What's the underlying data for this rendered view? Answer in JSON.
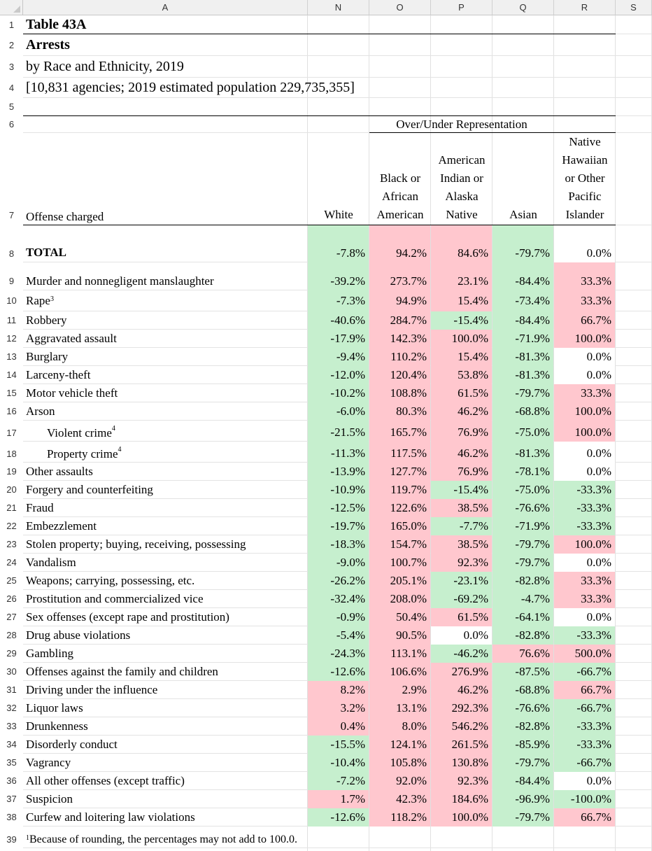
{
  "sheet": {
    "columns": [
      "A",
      "N",
      "O",
      "P",
      "Q",
      "R",
      "S"
    ],
    "rows": [
      "1",
      "2",
      "3",
      "4",
      "5",
      "6",
      "7",
      "8",
      "9",
      "10",
      "11",
      "12",
      "13",
      "14",
      "15",
      "16",
      "17",
      "18",
      "19",
      "20",
      "21",
      "22",
      "23",
      "24",
      "25",
      "26",
      "27",
      "28",
      "29",
      "30",
      "31",
      "32",
      "33",
      "34",
      "35",
      "36",
      "37",
      "38",
      "39"
    ]
  },
  "header": {
    "title": "Table 43A",
    "subtitle": "Arrests",
    "by_line": "by Race and Ethnicity, 2019",
    "agencies": "[10,831 agencies; 2019 estimated population 229,735,355]",
    "group_label": "Over/Under Representation",
    "col_offense": "Offense charged",
    "col_white": "White",
    "col_black": [
      "Black or",
      "African",
      "American"
    ],
    "col_aian": [
      "American",
      "Indian or",
      "Alaska",
      "Native"
    ],
    "col_asian": "Asian",
    "col_nhpi": [
      "Native",
      "Hawaiian",
      "or Other",
      "Pacific",
      "Islander"
    ]
  },
  "colors": {
    "positive": "#ffc7ce",
    "negative": "#c6efce"
  },
  "rows": [
    {
      "label": "TOTAL",
      "sup": "",
      "bold": true,
      "indent": false,
      "v": [
        "-7.8%",
        "94.2%",
        "84.6%",
        "-79.7%",
        "0.0%"
      ],
      "c": [
        "g",
        "r",
        "r",
        "g",
        "w"
      ]
    },
    {
      "label": "Murder and nonnegligent manslaughter",
      "sup": "",
      "bold": false,
      "indent": false,
      "v": [
        "-39.2%",
        "273.7%",
        "23.1%",
        "-84.4%",
        "33.3%"
      ],
      "c": [
        "g",
        "r",
        "r",
        "g",
        "r"
      ]
    },
    {
      "label": "Rape",
      "sup": "3",
      "bold": false,
      "indent": false,
      "v": [
        "-7.3%",
        "94.9%",
        "15.4%",
        "-73.4%",
        "33.3%"
      ],
      "c": [
        "g",
        "r",
        "r",
        "g",
        "r"
      ]
    },
    {
      "label": "Robbery",
      "sup": "",
      "bold": false,
      "indent": false,
      "v": [
        "-40.6%",
        "284.7%",
        "-15.4%",
        "-84.4%",
        "66.7%"
      ],
      "c": [
        "g",
        "r",
        "g",
        "g",
        "r"
      ]
    },
    {
      "label": "Aggravated assault",
      "sup": "",
      "bold": false,
      "indent": false,
      "v": [
        "-17.9%",
        "142.3%",
        "100.0%",
        "-71.9%",
        "100.0%"
      ],
      "c": [
        "g",
        "r",
        "r",
        "g",
        "r"
      ]
    },
    {
      "label": "Burglary",
      "sup": "",
      "bold": false,
      "indent": false,
      "v": [
        "-9.4%",
        "110.2%",
        "15.4%",
        "-81.3%",
        "0.0%"
      ],
      "c": [
        "g",
        "r",
        "r",
        "g",
        "w"
      ]
    },
    {
      "label": "Larceny-theft",
      "sup": "",
      "bold": false,
      "indent": false,
      "v": [
        "-12.0%",
        "120.4%",
        "53.8%",
        "-81.3%",
        "0.0%"
      ],
      "c": [
        "g",
        "r",
        "r",
        "g",
        "w"
      ]
    },
    {
      "label": "Motor vehicle theft",
      "sup": "",
      "bold": false,
      "indent": false,
      "v": [
        "-10.2%",
        "108.8%",
        "61.5%",
        "-79.7%",
        "33.3%"
      ],
      "c": [
        "g",
        "r",
        "r",
        "g",
        "r"
      ]
    },
    {
      "label": "Arson",
      "sup": "",
      "bold": false,
      "indent": false,
      "v": [
        "-6.0%",
        "80.3%",
        "46.2%",
        "-68.8%",
        "100.0%"
      ],
      "c": [
        "g",
        "r",
        "r",
        "g",
        "r"
      ]
    },
    {
      "label": "Violent crime",
      "sup": "4",
      "bold": false,
      "indent": true,
      "v": [
        "-21.5%",
        "165.7%",
        "76.9%",
        "-75.0%",
        "100.0%"
      ],
      "c": [
        "g",
        "r",
        "r",
        "g",
        "r"
      ]
    },
    {
      "label": "Property crime",
      "sup": "4",
      "bold": false,
      "indent": true,
      "v": [
        "-11.3%",
        "117.5%",
        "46.2%",
        "-81.3%",
        "0.0%"
      ],
      "c": [
        "g",
        "r",
        "r",
        "g",
        "w"
      ]
    },
    {
      "label": "Other assaults",
      "sup": "",
      "bold": false,
      "indent": false,
      "v": [
        "-13.9%",
        "127.7%",
        "76.9%",
        "-78.1%",
        "0.0%"
      ],
      "c": [
        "g",
        "r",
        "r",
        "g",
        "w"
      ]
    },
    {
      "label": "Forgery and counterfeiting",
      "sup": "",
      "bold": false,
      "indent": false,
      "v": [
        "-10.9%",
        "119.7%",
        "-15.4%",
        "-75.0%",
        "-33.3%"
      ],
      "c": [
        "g",
        "r",
        "g",
        "g",
        "g"
      ]
    },
    {
      "label": "Fraud",
      "sup": "",
      "bold": false,
      "indent": false,
      "v": [
        "-12.5%",
        "122.6%",
        "38.5%",
        "-76.6%",
        "-33.3%"
      ],
      "c": [
        "g",
        "r",
        "r",
        "g",
        "g"
      ]
    },
    {
      "label": "Embezzlement",
      "sup": "",
      "bold": false,
      "indent": false,
      "v": [
        "-19.7%",
        "165.0%",
        "-7.7%",
        "-71.9%",
        "-33.3%"
      ],
      "c": [
        "g",
        "r",
        "g",
        "g",
        "g"
      ]
    },
    {
      "label": "Stolen property; buying, receiving, possessing",
      "sup": "",
      "bold": false,
      "indent": false,
      "v": [
        "-18.3%",
        "154.7%",
        "38.5%",
        "-79.7%",
        "100.0%"
      ],
      "c": [
        "g",
        "r",
        "r",
        "g",
        "r"
      ]
    },
    {
      "label": "Vandalism",
      "sup": "",
      "bold": false,
      "indent": false,
      "v": [
        "-9.0%",
        "100.7%",
        "92.3%",
        "-79.7%",
        "0.0%"
      ],
      "c": [
        "g",
        "r",
        "r",
        "g",
        "w"
      ]
    },
    {
      "label": "Weapons; carrying, possessing, etc.",
      "sup": "",
      "bold": false,
      "indent": false,
      "v": [
        "-26.2%",
        "205.1%",
        "-23.1%",
        "-82.8%",
        "33.3%"
      ],
      "c": [
        "g",
        "r",
        "g",
        "g",
        "r"
      ]
    },
    {
      "label": "Prostitution and commercialized vice",
      "sup": "",
      "bold": false,
      "indent": false,
      "v": [
        "-32.4%",
        "208.0%",
        "-69.2%",
        "-4.7%",
        "33.3%"
      ],
      "c": [
        "g",
        "r",
        "g",
        "g",
        "r"
      ]
    },
    {
      "label": "Sex offenses (except rape and prostitution)",
      "sup": "",
      "bold": false,
      "indent": false,
      "v": [
        "-0.9%",
        "50.4%",
        "61.5%",
        "-64.1%",
        "0.0%"
      ],
      "c": [
        "g",
        "r",
        "r",
        "g",
        "w"
      ]
    },
    {
      "label": "Drug abuse violations",
      "sup": "",
      "bold": false,
      "indent": false,
      "v": [
        "-5.4%",
        "90.5%",
        "0.0%",
        "-82.8%",
        "-33.3%"
      ],
      "c": [
        "g",
        "r",
        "w",
        "g",
        "g"
      ]
    },
    {
      "label": "Gambling",
      "sup": "",
      "bold": false,
      "indent": false,
      "v": [
        "-24.3%",
        "113.1%",
        "-46.2%",
        "76.6%",
        "500.0%"
      ],
      "c": [
        "g",
        "r",
        "g",
        "r",
        "r"
      ]
    },
    {
      "label": "Offenses against the family and children",
      "sup": "",
      "bold": false,
      "indent": false,
      "v": [
        "-12.6%",
        "106.6%",
        "276.9%",
        "-87.5%",
        "-66.7%"
      ],
      "c": [
        "g",
        "r",
        "r",
        "g",
        "g"
      ]
    },
    {
      "label": "Driving under the influence",
      "sup": "",
      "bold": false,
      "indent": false,
      "v": [
        "8.2%",
        "2.9%",
        "46.2%",
        "-68.8%",
        "66.7%"
      ],
      "c": [
        "r",
        "r",
        "r",
        "g",
        "r"
      ]
    },
    {
      "label": "Liquor laws",
      "sup": "",
      "bold": false,
      "indent": false,
      "v": [
        "3.2%",
        "13.1%",
        "292.3%",
        "-76.6%",
        "-66.7%"
      ],
      "c": [
        "r",
        "r",
        "r",
        "g",
        "g"
      ]
    },
    {
      "label": "Drunkenness",
      "sup": "",
      "bold": false,
      "indent": false,
      "v": [
        "0.4%",
        "8.0%",
        "546.2%",
        "-82.8%",
        "-33.3%"
      ],
      "c": [
        "r",
        "r",
        "r",
        "g",
        "g"
      ]
    },
    {
      "label": "Disorderly conduct",
      "sup": "",
      "bold": false,
      "indent": false,
      "v": [
        "-15.5%",
        "124.1%",
        "261.5%",
        "-85.9%",
        "-33.3%"
      ],
      "c": [
        "g",
        "r",
        "r",
        "g",
        "g"
      ]
    },
    {
      "label": "Vagrancy",
      "sup": "",
      "bold": false,
      "indent": false,
      "v": [
        "-10.4%",
        "105.8%",
        "130.8%",
        "-79.7%",
        "-66.7%"
      ],
      "c": [
        "g",
        "r",
        "r",
        "g",
        "g"
      ]
    },
    {
      "label": "All other offenses (except traffic)",
      "sup": "",
      "bold": false,
      "indent": false,
      "v": [
        "-7.2%",
        "92.0%",
        "92.3%",
        "-84.4%",
        "0.0%"
      ],
      "c": [
        "g",
        "r",
        "r",
        "g",
        "w"
      ]
    },
    {
      "label": "Suspicion",
      "sup": "",
      "bold": false,
      "indent": false,
      "v": [
        "1.7%",
        "42.3%",
        "184.6%",
        "-96.9%",
        "-100.0%"
      ],
      "c": [
        "r",
        "r",
        "r",
        "g",
        "g"
      ]
    },
    {
      "label": "Curfew and loitering law violations",
      "sup": "",
      "bold": false,
      "indent": false,
      "v": [
        "-12.6%",
        "118.2%",
        "100.0%",
        "-79.7%",
        "66.7%"
      ],
      "c": [
        "g",
        "r",
        "r",
        "g",
        "r"
      ]
    }
  ],
  "footnote": {
    "sup": "1",
    "text": "Because of rounding, the percentages may not add to 100.0."
  }
}
